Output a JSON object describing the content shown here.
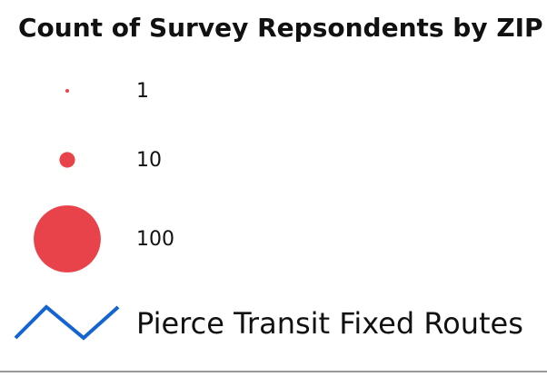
{
  "legend": {
    "title": "Count of Survey Repsondents by ZIP",
    "size_symbols": {
      "color": "#e8434a",
      "items": [
        1,
        10,
        100
      ]
    },
    "line_symbol": {
      "label": "Pierce Transit Fixed Routes",
      "color": "#1464d2"
    }
  }
}
